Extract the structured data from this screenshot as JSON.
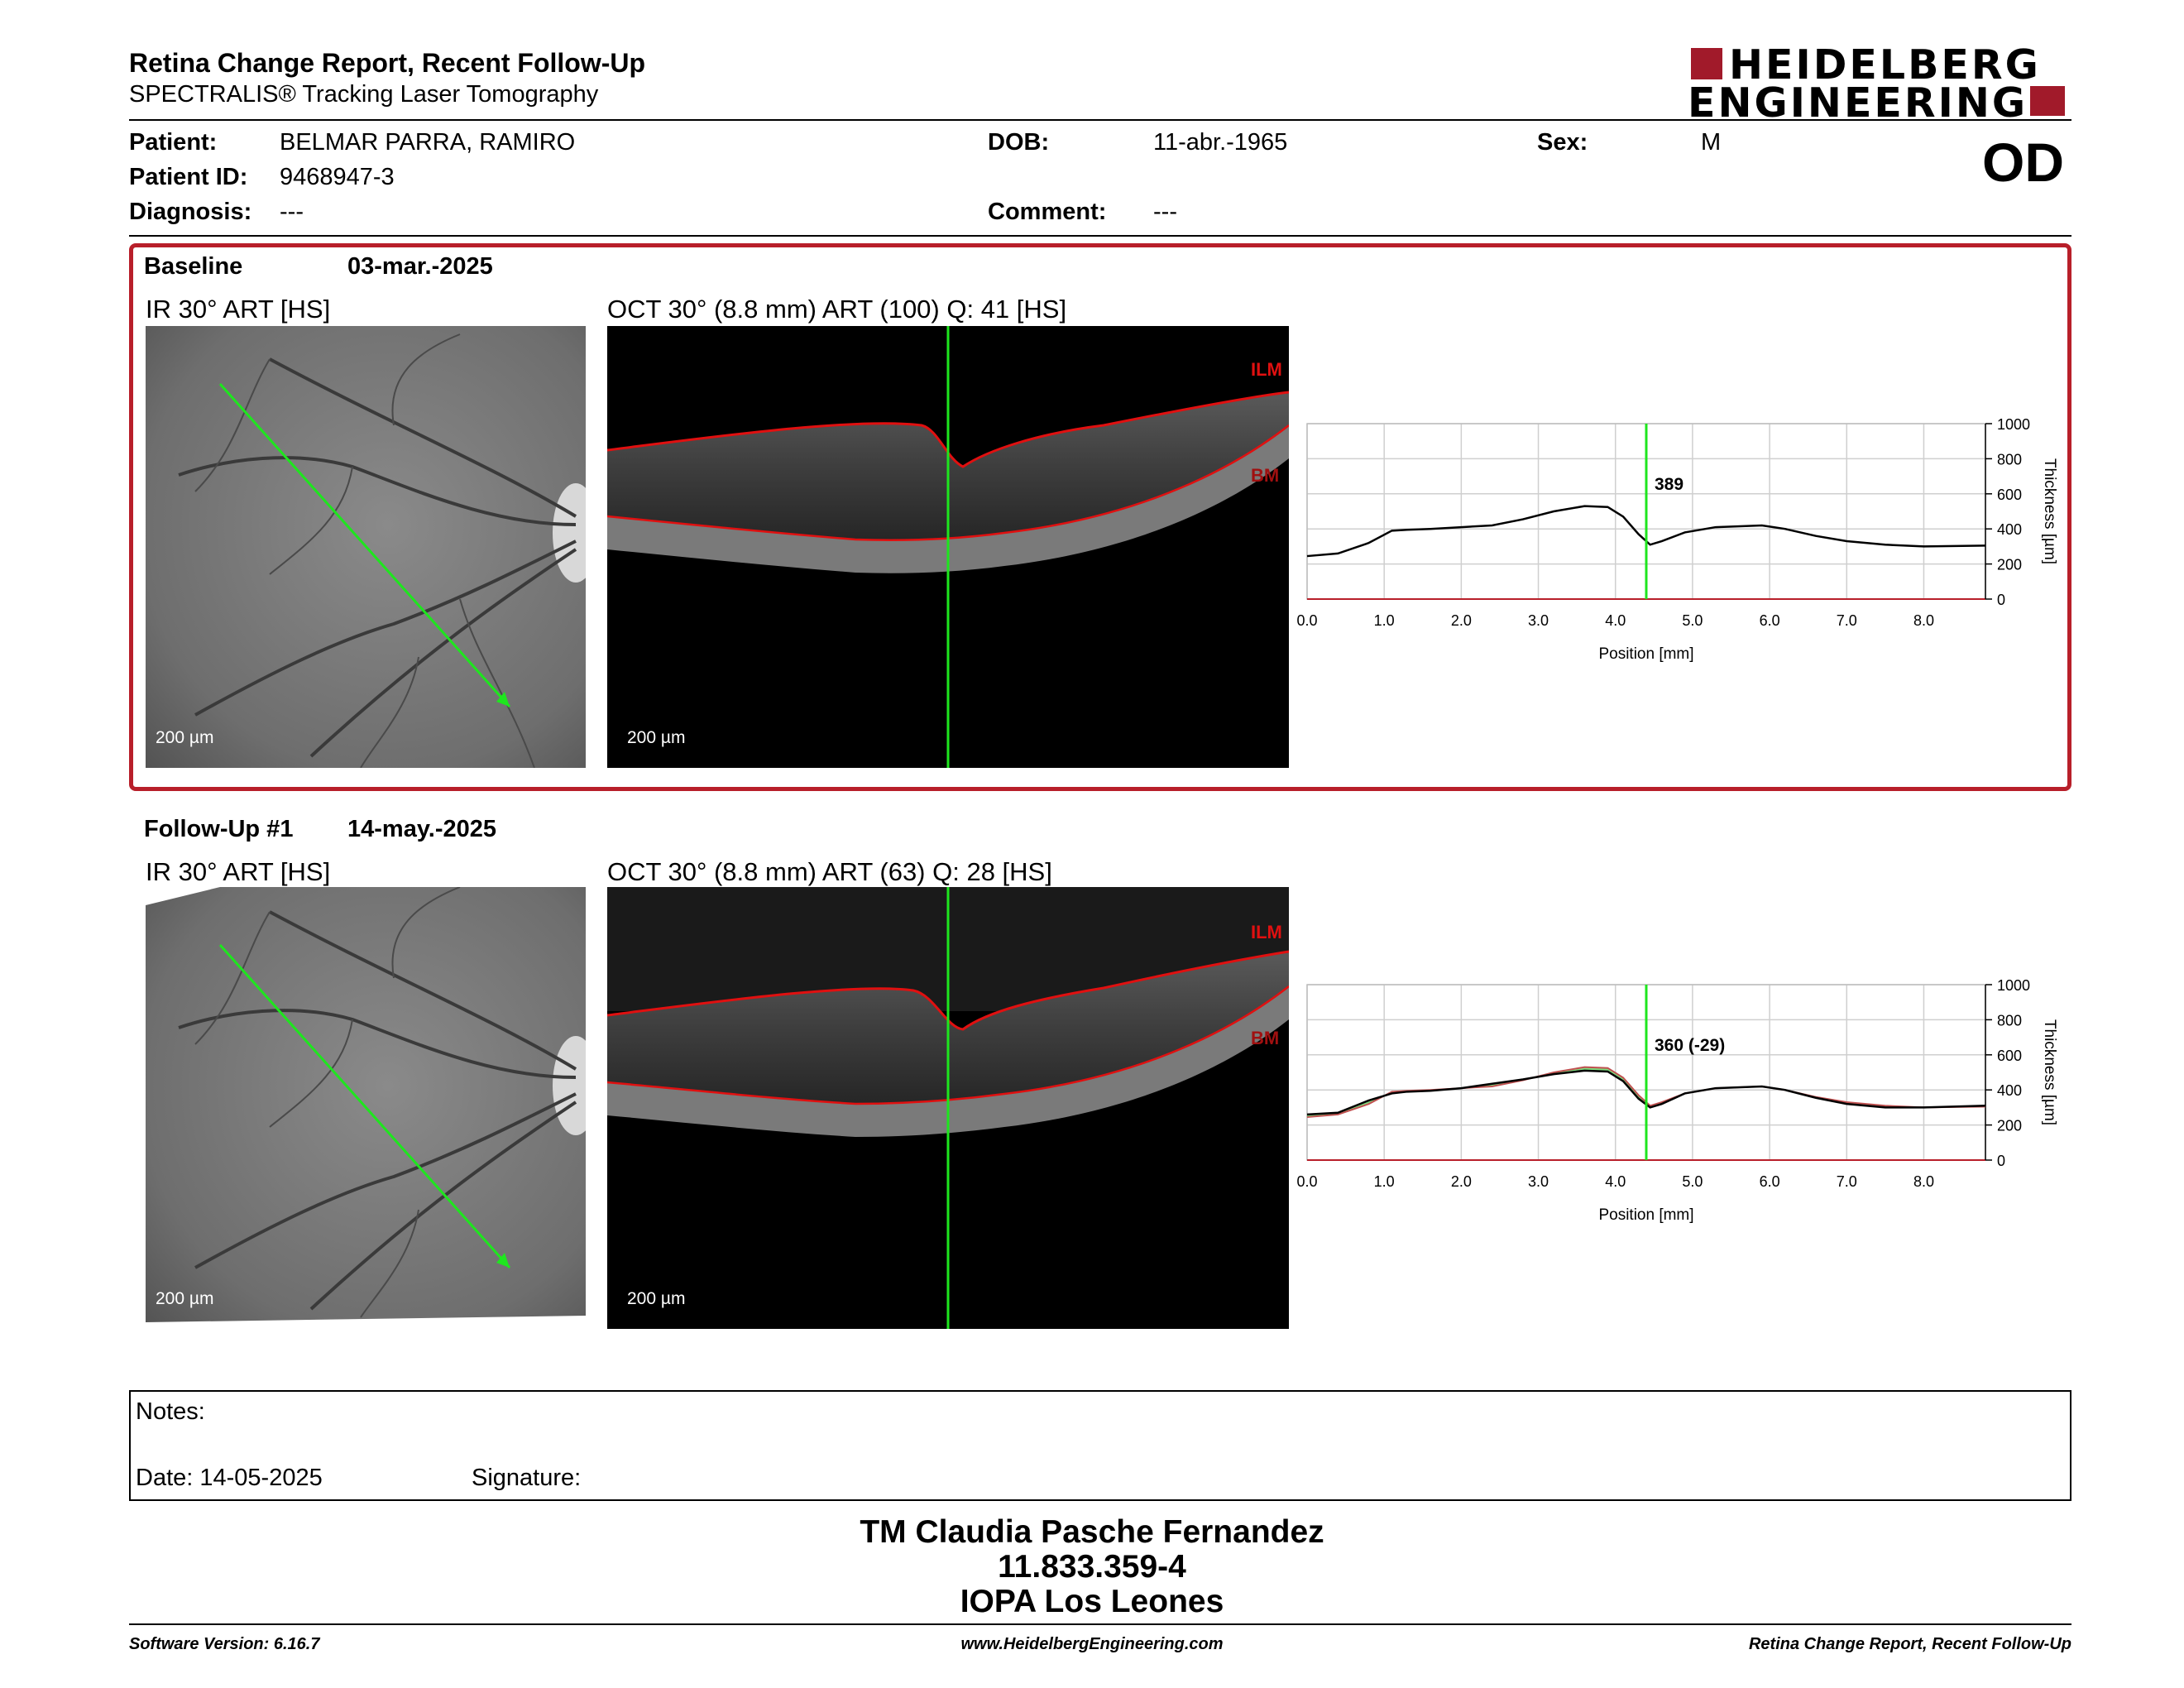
{
  "header": {
    "title": "Retina Change Report, Recent Follow-Up",
    "subtitle": "SPECTRALIS® Tracking Laser Tomography",
    "logo_line1": "HEIDELBERG",
    "logo_line2": "ENGINEERING",
    "eye": "OD"
  },
  "patient": {
    "patient_label": "Patient:",
    "patient_value": "BELMAR PARRA, RAMIRO",
    "id_label": "Patient ID:",
    "id_value": "9468947-3",
    "diagnosis_label": "Diagnosis:",
    "diagnosis_value": "---",
    "dob_label": "DOB:",
    "dob_value": "11-abr.-1965",
    "comment_label": "Comment:",
    "comment_value": "---",
    "sex_label": "Sex:",
    "sex_value": "M"
  },
  "colors": {
    "accent_red": "#b81f2a",
    "logo_red": "#a11a2a",
    "scan_green": "#1ee61e",
    "ilm_red": "#e01010"
  },
  "exams": [
    {
      "label": "Baseline",
      "date": "03-mar.-2025",
      "ir_title": "IR 30° ART [HS]",
      "oct_title": "OCT 30° (8.8 mm) ART (100) Q: 41 [HS]",
      "ir_scale": "200 µm",
      "oct_scale": "200 µm",
      "ilm_label": "ILM",
      "bm_label": "BM"
    },
    {
      "label": "Follow-Up #1",
      "date": "14-may.-2025",
      "ir_title": "IR 30° ART [HS]",
      "oct_title": "OCT 30° (8.8 mm) ART (63) Q: 28 [HS]",
      "ir_scale": "200 µm",
      "oct_scale": "200 µm",
      "ilm_label": "ILM",
      "bm_label": "BM"
    }
  ],
  "chart_data": [
    {
      "type": "line",
      "xlabel": "Position [mm]",
      "ylabel": "Thickness [µm]",
      "xlim": [
        0,
        8.8
      ],
      "ylim": [
        0,
        1000
      ],
      "x_ticks": [
        "0.0",
        "1.0",
        "2.0",
        "3.0",
        "4.0",
        "5.0",
        "6.0",
        "7.0",
        "8.0"
      ],
      "y_ticks": [
        "0",
        "200",
        "400",
        "600",
        "800",
        "1000"
      ],
      "cursor_x": 4.4,
      "cursor_label": "389",
      "series": [
        {
          "values": [
            [
              0,
              245
            ],
            [
              0.4,
              260
            ],
            [
              0.8,
              320
            ],
            [
              1.1,
              390
            ],
            [
              1.3,
              395
            ],
            [
              1.6,
              400
            ],
            [
              2.0,
              410
            ],
            [
              2.4,
              420
            ],
            [
              2.8,
              455
            ],
            [
              3.2,
              500
            ],
            [
              3.6,
              530
            ],
            [
              3.9,
              525
            ],
            [
              4.1,
              470
            ],
            [
              4.3,
              370
            ],
            [
              4.45,
              310
            ],
            [
              4.6,
              330
            ],
            [
              4.9,
              380
            ],
            [
              5.3,
              410
            ],
            [
              5.9,
              420
            ],
            [
              6.2,
              400
            ],
            [
              6.6,
              360
            ],
            [
              7.0,
              330
            ],
            [
              7.5,
              310
            ],
            [
              8.0,
              300
            ],
            [
              8.8,
              305
            ]
          ]
        }
      ]
    },
    {
      "type": "line",
      "xlabel": "Position [mm]",
      "ylabel": "Thickness [µm]",
      "xlim": [
        0,
        8.8
      ],
      "ylim": [
        0,
        1000
      ],
      "x_ticks": [
        "0.0",
        "1.0",
        "2.0",
        "3.0",
        "4.0",
        "5.0",
        "6.0",
        "7.0",
        "8.0"
      ],
      "y_ticks": [
        "0",
        "200",
        "400",
        "600",
        "800",
        "1000"
      ],
      "cursor_x": 4.4,
      "cursor_label": "360 (-29)",
      "series": [
        {
          "values": [
            [
              0,
              260
            ],
            [
              0.4,
              270
            ],
            [
              0.8,
              340
            ],
            [
              1.1,
              380
            ],
            [
              1.3,
              390
            ],
            [
              1.6,
              395
            ],
            [
              2.0,
              410
            ],
            [
              2.4,
              435
            ],
            [
              2.8,
              460
            ],
            [
              3.2,
              490
            ],
            [
              3.6,
              510
            ],
            [
              3.9,
              505
            ],
            [
              4.1,
              450
            ],
            [
              4.3,
              350
            ],
            [
              4.45,
              300
            ],
            [
              4.6,
              320
            ],
            [
              4.9,
              380
            ],
            [
              5.3,
              410
            ],
            [
              5.9,
              420
            ],
            [
              6.2,
              400
            ],
            [
              6.6,
              355
            ],
            [
              7.0,
              320
            ],
            [
              7.5,
              300
            ],
            [
              8.0,
              300
            ],
            [
              8.8,
              310
            ]
          ]
        },
        {
          "values": [
            [
              0,
              245
            ],
            [
              0.4,
              260
            ],
            [
              0.8,
              320
            ],
            [
              1.1,
              390
            ],
            [
              1.3,
              395
            ],
            [
              1.6,
              400
            ],
            [
              2.0,
              410
            ],
            [
              2.4,
              420
            ],
            [
              2.8,
              455
            ],
            [
              3.2,
              500
            ],
            [
              3.6,
              530
            ],
            [
              3.9,
              525
            ],
            [
              4.1,
              470
            ],
            [
              4.3,
              370
            ],
            [
              4.45,
              310
            ],
            [
              4.6,
              330
            ],
            [
              4.9,
              380
            ],
            [
              5.3,
              410
            ],
            [
              5.9,
              420
            ],
            [
              6.2,
              400
            ],
            [
              6.6,
              360
            ],
            [
              7.0,
              330
            ],
            [
              7.5,
              310
            ],
            [
              8.0,
              300
            ],
            [
              8.8,
              305
            ]
          ]
        }
      ]
    }
  ],
  "notes": {
    "notes_label": "Notes:",
    "date_label": "Date: 14-05-2025",
    "signature_label": "Signature:"
  },
  "signature_block": {
    "name": "TM Claudia Pasche Fernandez",
    "rut": "11.833.359-4",
    "clinic": "IOPA Los Leones"
  },
  "footer": {
    "software": "Software Version: 6.16.7",
    "website": "www.HeidelbergEngineering.com",
    "report": "Retina Change Report, Recent Follow-Up"
  }
}
